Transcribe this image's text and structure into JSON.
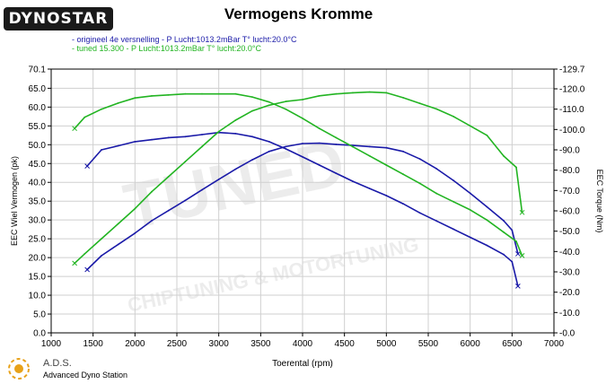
{
  "header": {
    "brand": "DYNOSTAR",
    "brand_sub": "",
    "title": "Vermogens Kromme"
  },
  "legend": [
    {
      "text": "- origineel 4e versnelling  - P Lucht:1013.2mBar T° lucht:20.0°C",
      "color": "#1a1aa8"
    },
    {
      "text": "- tuned 15.300  - P Lucht:1013.2mBar T° lucht:20.0°C",
      "color": "#22b422"
    }
  ],
  "footer": {
    "ads_short": "A.D.S.",
    "ads_full": "Advanced Dyno Station"
  },
  "watermark": "CHIPTUNING & MOTORTUNING",
  "chart_data": {
    "type": "line",
    "title": "Vermogens Kromme",
    "xlabel": "Toerental (rpm)",
    "ylabel_left": "EEC Wiel Vermogen (pk)",
    "ylabel_right": "EEC Torque (Nm)",
    "xlim": [
      1000,
      7000
    ],
    "ylim_left": [
      0.0,
      70.1
    ],
    "ylim_right": [
      0.0,
      129.7
    ],
    "x_ticks": [
      1000,
      1500,
      2000,
      2500,
      3000,
      3500,
      4000,
      4500,
      5000,
      5500,
      6000,
      6500,
      7000
    ],
    "y_left_ticks": [
      "0.0",
      "5.0",
      "10.0",
      "15.0",
      "20.0",
      "25.0",
      "30.0",
      "35.0",
      "40.0",
      "45.0",
      "50.0",
      "55.0",
      "60.0",
      "65.0",
      "70.1"
    ],
    "y_right_ticks": [
      "-0.0",
      "-10.0",
      "-20.0",
      "-30.0",
      "-40.0",
      "-50.0",
      "-60.0",
      "-70.0",
      "-80.0",
      "-90.0",
      "-100.0",
      "-110.0",
      "-120.0",
      "-129.7"
    ],
    "grid": true,
    "series": [
      {
        "name": "origineel 4e versnelling",
        "quantity": "power",
        "axis": "left",
        "color": "#1a1aa8",
        "x": [
          1430,
          1600,
          1800,
          2000,
          2200,
          2400,
          2600,
          2800,
          3000,
          3200,
          3400,
          3600,
          3800,
          4000,
          4200,
          4400,
          4600,
          4800,
          5000,
          5200,
          5400,
          5600,
          5800,
          6000,
          6200,
          6400,
          6500,
          6570
        ],
        "y": [
          16.8,
          20.5,
          23.5,
          26.5,
          29.8,
          32.5,
          35.2,
          38.0,
          40.8,
          43.5,
          46.0,
          48.2,
          49.5,
          50.3,
          50.4,
          50.1,
          49.8,
          49.5,
          49.2,
          48.2,
          46.2,
          43.6,
          40.5,
          37.1,
          33.5,
          29.8,
          27.3,
          21.0
        ]
      },
      {
        "name": "origineel 4e versnelling",
        "quantity": "torque",
        "axis": "right",
        "color": "#1a1aa8",
        "x": [
          1430,
          1600,
          1800,
          2000,
          2200,
          2400,
          2600,
          2800,
          3000,
          3200,
          3400,
          3600,
          3800,
          4000,
          4200,
          4400,
          4600,
          4800,
          5000,
          5200,
          5400,
          5600,
          5800,
          6000,
          6200,
          6400,
          6500,
          6570
        ],
        "y": [
          82.0,
          90.0,
          92.0,
          94.0,
          95.0,
          96.0,
          96.5,
          97.5,
          98.5,
          98.0,
          96.5,
          94.0,
          90.5,
          86.5,
          82.5,
          78.5,
          74.5,
          71.0,
          67.5,
          63.5,
          59.0,
          55.0,
          51.0,
          47.0,
          43.0,
          38.5,
          35.0,
          23.0
        ]
      },
      {
        "name": "tuned 15.300",
        "quantity": "power",
        "axis": "left",
        "color": "#22b422",
        "x": [
          1280,
          1400,
          1600,
          1800,
          2000,
          2200,
          2400,
          2600,
          2800,
          3000,
          3200,
          3400,
          3600,
          3800,
          4000,
          4200,
          4400,
          4600,
          4800,
          5000,
          5200,
          5400,
          5600,
          5800,
          6000,
          6200,
          6400,
          6550,
          6620
        ],
        "y": [
          18.5,
          21.0,
          25.0,
          29.0,
          33.0,
          37.5,
          41.5,
          45.5,
          49.5,
          53.5,
          56.5,
          59.0,
          60.5,
          61.5,
          62.0,
          63.0,
          63.5,
          63.8,
          64.0,
          63.8,
          62.5,
          61.0,
          59.5,
          57.5,
          55.0,
          52.5,
          47.0,
          44.0,
          32.0
        ]
      },
      {
        "name": "tuned 15.300",
        "quantity": "torque",
        "axis": "right",
        "color": "#22b422",
        "x": [
          1280,
          1400,
          1600,
          1800,
          2000,
          2200,
          2400,
          2600,
          2800,
          3000,
          3200,
          3400,
          3600,
          3800,
          4000,
          4200,
          4400,
          4600,
          4800,
          5000,
          5200,
          5400,
          5600,
          5800,
          6000,
          6200,
          6400,
          6550,
          6620
        ],
        "y": [
          100.5,
          106.0,
          110.0,
          113.0,
          115.5,
          116.5,
          117.0,
          117.5,
          117.5,
          117.5,
          117.5,
          116.0,
          113.5,
          110.0,
          105.5,
          100.5,
          96.0,
          91.5,
          87.0,
          82.5,
          78.0,
          73.5,
          68.5,
          64.5,
          60.5,
          55.5,
          49.5,
          45.0,
          38.0
        ]
      }
    ]
  }
}
